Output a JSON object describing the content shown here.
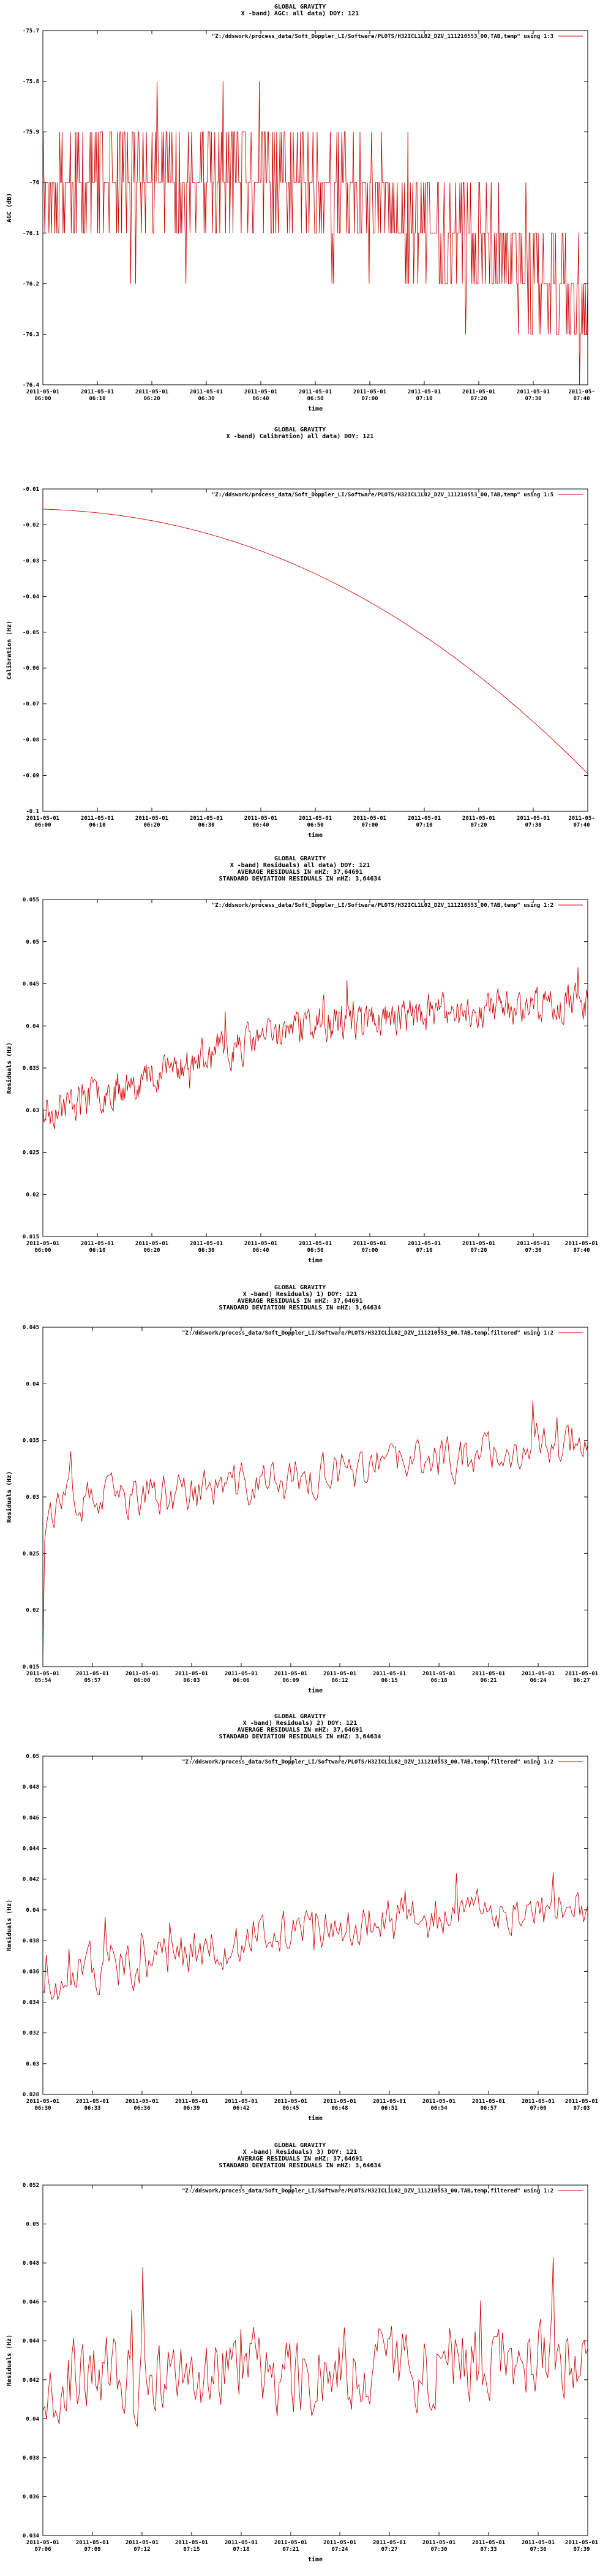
{
  "chart_data": [
    {
      "type": "line",
      "title_lines": [
        "GLOBAL GRAVITY",
        "X -band) AGC: all data) DOY: 121"
      ],
      "legend_label": "\"Z:/ddswork/process_data/Soft_Doppler_LI/Software/PLOTS/H32ICL1L02_DZV_111210553_00,TAB,temp\" using 1:3",
      "legend_position": "top-right",
      "ylabel": "AGC (dB)",
      "xlabel": "time",
      "ylim": [
        -76.4,
        -75.7
      ],
      "yticks": [
        "-75.7",
        "-75.8",
        "-75.9",
        "-76",
        "-76.1",
        "-76.2",
        "-76.3",
        "-76.4"
      ],
      "xlim": [
        0,
        100
      ],
      "xticks": [
        {
          "x": 0,
          "l1": "2011-05-01",
          "l2": "06:00"
        },
        {
          "x": 10,
          "l1": "2011-05-01",
          "l2": "06:10"
        },
        {
          "x": 20,
          "l1": "2011-05-01",
          "l2": "06:20"
        },
        {
          "x": 30,
          "l1": "2011-05-01",
          "l2": "06:30"
        },
        {
          "x": 40,
          "l1": "2011-05-01",
          "l2": "06:40"
        },
        {
          "x": 50,
          "l1": "2011-05-01",
          "l2": "06:50"
        },
        {
          "x": 60,
          "l1": "2011-05-01",
          "l2": "07:00"
        },
        {
          "x": 70,
          "l1": "2011-05-01",
          "l2": "07:10"
        },
        {
          "x": 80,
          "l1": "2011-05-01",
          "l2": "07:20"
        },
        {
          "x": 90,
          "l1": "2011-05-01",
          "l2": "07:30"
        },
        {
          "x": 100,
          "l1": "2011-05-",
          "l2": "07:40"
        }
      ],
      "series_profile": {
        "kind": "step",
        "level_start": -76.0,
        "level_end": -76.22,
        "noise": 0.1,
        "quantum": 0.1,
        "x_start": -6,
        "x_end": 100,
        "points": 700,
        "seed": 11
      },
      "color": "#cc0000"
    },
    {
      "type": "line",
      "title_lines": [
        "GLOBAL GRAVITY",
        "X -band) Calibration) all data) DOY: 121"
      ],
      "legend_label": "\"Z:/ddswork/process_data/Soft_Doppler_LI/Software/PLOTS/H32ICL1L02_DZV_111210553_00,TAB,temp\" using 1:5",
      "legend_position": "top-right",
      "ylabel": "Calibration (Hz)",
      "xlabel": "time",
      "ylim": [
        -0.1,
        -0.01
      ],
      "yticks": [
        "-0.01",
        "-0.02",
        "-0.03",
        "-0.04",
        "-0.05",
        "-0.06",
        "-0.07",
        "-0.08",
        "-0.09",
        "-0.1"
      ],
      "xlim": [
        0,
        100
      ],
      "xticks": [
        {
          "x": 0,
          "l1": "2011-05-01",
          "l2": "06:00"
        },
        {
          "x": 10,
          "l1": "2011-05-01",
          "l2": "06:10"
        },
        {
          "x": 20,
          "l1": "2011-05-01",
          "l2": "06:20"
        },
        {
          "x": 30,
          "l1": "2011-05-01",
          "l2": "06:30"
        },
        {
          "x": 40,
          "l1": "2011-05-01",
          "l2": "06:40"
        },
        {
          "x": 50,
          "l1": "2011-05-01",
          "l2": "06:50"
        },
        {
          "x": 60,
          "l1": "2011-05-01",
          "l2": "07:00"
        },
        {
          "x": 70,
          "l1": "2011-05-01",
          "l2": "07:10"
        },
        {
          "x": 80,
          "l1": "2011-05-01",
          "l2": "07:20"
        },
        {
          "x": 90,
          "l1": "2011-05-01",
          "l2": "07:30"
        },
        {
          "x": 100,
          "l1": "2011-05-",
          "l2": "07:40"
        }
      ],
      "series_profile": {
        "kind": "curve",
        "y_start": -0.0155,
        "y_end": -0.0895,
        "power": 2.2,
        "x_start": -6,
        "x_end": 100,
        "points": 200
      },
      "color": "#cc0000"
    },
    {
      "type": "line",
      "title_lines": [
        "GLOBAL GRAVITY",
        "X -band) Residuals) all data) DOY: 121",
        "AVERAGE RESIDUALS IN mHZ: 37,64691",
        "STANDARD DEVIATION RESIDUALS IN mHZ: 3,64634"
      ],
      "legend_label": "\"Z:/ddswork/process_data/Soft_Doppler_LI/Software/PLOTS/H32ICL1L02_DZV_111210553_00,TAB,temp\" using 1:2",
      "legend_position": "top-right",
      "ylabel": "Residuals (Hz)",
      "xlabel": "time",
      "ylim": [
        0.015,
        0.055
      ],
      "yticks": [
        "0.015",
        "0.02",
        "0.025",
        "0.03",
        "0.035",
        "0.04",
        "0.045",
        "0.05",
        "0.055"
      ],
      "xlim": [
        0,
        100
      ],
      "xticks": [
        {
          "x": 0,
          "l1": "2011-05-01",
          "l2": "06:00"
        },
        {
          "x": 10,
          "l1": "2011-05-01",
          "l2": "06:10"
        },
        {
          "x": 20,
          "l1": "2011-05-01",
          "l2": "06:20"
        },
        {
          "x": 30,
          "l1": "2011-05-01",
          "l2": "06:30"
        },
        {
          "x": 40,
          "l1": "2011-05-01",
          "l2": "06:40"
        },
        {
          "x": 50,
          "l1": "2011-05-01",
          "l2": "06:50"
        },
        {
          "x": 60,
          "l1": "2011-05-01",
          "l2": "07:00"
        },
        {
          "x": 70,
          "l1": "2011-05-01",
          "l2": "07:10"
        },
        {
          "x": 80,
          "l1": "2011-05-01",
          "l2": "07:20"
        },
        {
          "x": 90,
          "l1": "2011-05-01",
          "l2": "07:30"
        },
        {
          "x": 100,
          "l1": "2011-05-01",
          "l2": "07:40"
        }
      ],
      "series_profile": {
        "kind": "noisy",
        "level_start": 0.0285,
        "level_mid": 0.04,
        "level_end": 0.043,
        "noise": 0.0032,
        "x_start": -6,
        "x_end": 100,
        "points": 650,
        "seed": 23
      },
      "color": "#cc0000"
    },
    {
      "type": "line",
      "title_lines": [
        "GLOBAL GRAVITY",
        "X -band) Residuals) 1) DOY: 121",
        "AVERAGE RESIDUALS IN mHZ: 37,64691",
        "STANDARD DEVIATION RESIDUALS IN mHZ: 3,64634"
      ],
      "legend_label": "\"Z:/ddswork/process_data/Soft_Doppler_LI/Software/PLOTS/H32ICL1L02_DZV_111210553_00,TAB,temp,filtered\" using 1:2",
      "legend_position": "top-right",
      "ylabel": "Residuals (Hz)",
      "xlabel": "time",
      "ylim": [
        0.015,
        0.045
      ],
      "yticks": [
        "0.015",
        "0.02",
        "0.025",
        "0.03",
        "0.035",
        "0.04",
        "0.045"
      ],
      "xlim": [
        0,
        100
      ],
      "xticks": [
        {
          "x": 0,
          "l1": "2011-05-01",
          "l2": "05:54"
        },
        {
          "x": 9.1,
          "l1": "2011-05-01",
          "l2": "05:57"
        },
        {
          "x": 18.2,
          "l1": "2011-05-01",
          "l2": "06:00"
        },
        {
          "x": 27.3,
          "l1": "2011-05-01",
          "l2": "06:03"
        },
        {
          "x": 36.4,
          "l1": "2011-05-01",
          "l2": "06:06"
        },
        {
          "x": 45.5,
          "l1": "2011-05-01",
          "l2": "06:09"
        },
        {
          "x": 54.5,
          "l1": "2011-05-01",
          "l2": "06:12"
        },
        {
          "x": 63.6,
          "l1": "2011-05-01",
          "l2": "06:15"
        },
        {
          "x": 72.7,
          "l1": "2011-05-01",
          "l2": "06:18"
        },
        {
          "x": 81.8,
          "l1": "2011-05-01",
          "l2": "06:21"
        },
        {
          "x": 90.9,
          "l1": "2011-05-01",
          "l2": "06:24"
        },
        {
          "x": 100,
          "l1": "2011-05-01",
          "l2": "06:27"
        }
      ],
      "series_profile": {
        "kind": "noisy",
        "level_start": 0.029,
        "level_mid": 0.032,
        "level_end": 0.036,
        "noise": 0.003,
        "x_start": 0,
        "x_end": 109,
        "points": 320,
        "seed": 37,
        "start_dip": 0.0155
      },
      "color": "#cc0000"
    },
    {
      "type": "line",
      "title_lines": [
        "GLOBAL GRAVITY",
        "X -band) Residuals) 2) DOY: 121",
        "AVERAGE RESIDUALS IN mHZ: 37,64691",
        "STANDARD DEVIATION RESIDUALS IN mHZ: 3,64634"
      ],
      "legend_label": "\"Z:/ddswork/process_data/Soft_Doppler_LI/Software/PLOTS/H32ICL1L02_DZV_111210553_00,TAB,temp,filtered\" using 1:2",
      "legend_position": "top-right",
      "ylabel": "Residuals (Hz)",
      "xlabel": "time",
      "ylim": [
        0.028,
        0.05
      ],
      "yticks": [
        "0.028",
        "0.03",
        "0.032",
        "0.034",
        "0.036",
        "0.038",
        "0.04",
        "0.042",
        "0.044",
        "0.046",
        "0.048",
        "0.05"
      ],
      "xlim": [
        0,
        100
      ],
      "xticks": [
        {
          "x": 0,
          "l1": "2011-05-01",
          "l2": "06:30"
        },
        {
          "x": 9.1,
          "l1": "2011-05-01",
          "l2": "06:33"
        },
        {
          "x": 18.2,
          "l1": "2011-05-01",
          "l2": "06:36"
        },
        {
          "x": 27.3,
          "l1": "2011-05-01",
          "l2": "06:39"
        },
        {
          "x": 36.4,
          "l1": "2011-05-01",
          "l2": "06:42"
        },
        {
          "x": 45.5,
          "l1": "2011-05-01",
          "l2": "06:45"
        },
        {
          "x": 54.5,
          "l1": "2011-05-01",
          "l2": "06:48"
        },
        {
          "x": 63.6,
          "l1": "2011-05-01",
          "l2": "06:51"
        },
        {
          "x": 72.7,
          "l1": "2011-05-01",
          "l2": "06:54"
        },
        {
          "x": 81.8,
          "l1": "2011-05-01",
          "l2": "06:57"
        },
        {
          "x": 90.9,
          "l1": "2011-05-01",
          "l2": "07:00"
        },
        {
          "x": 100,
          "l1": "2011-05-01",
          "l2": "07:03"
        }
      ],
      "series_profile": {
        "kind": "noisy",
        "level_start": 0.035,
        "level_mid": 0.039,
        "level_end": 0.0405,
        "noise": 0.0024,
        "x_start": -6,
        "x_end": 109,
        "points": 330,
        "seed": 51
      },
      "color": "#cc0000"
    },
    {
      "type": "line",
      "title_lines": [
        "GLOBAL GRAVITY",
        "X -band) Residuals) 3) DOY: 121",
        "AVERAGE RESIDUALS IN mHZ: 37,64691",
        "STANDARD DEVIATION RESIDUALS IN mHZ: 3,64634"
      ],
      "legend_label": "\"Z:/ddswork/process_data/Soft_Doppler_LI/Software/PLOTS/H32ICL1L02_DZV_111210553_00,TAB,temp,filtered\" using 1:2",
      "legend_position": "top-right",
      "ylabel": "Residuals (Hz)",
      "xlabel": "time",
      "ylim": [
        0.034,
        0.052
      ],
      "yticks": [
        "0.034",
        "0.036",
        "0.038",
        "0.04",
        "0.042",
        "0.044",
        "0.046",
        "0.048",
        "0.05",
        "0.052"
      ],
      "xlim": [
        0,
        100
      ],
      "xticks": [
        {
          "x": 0,
          "l1": "2011-05-01",
          "l2": "07:06"
        },
        {
          "x": 9.1,
          "l1": "2011-05-01",
          "l2": "07:09"
        },
        {
          "x": 18.2,
          "l1": "2011-05-01",
          "l2": "07:12"
        },
        {
          "x": 27.3,
          "l1": "2011-05-01",
          "l2": "07:15"
        },
        {
          "x": 36.4,
          "l1": "2011-05-01",
          "l2": "07:18"
        },
        {
          "x": 45.5,
          "l1": "2011-05-01",
          "l2": "07:21"
        },
        {
          "x": 54.5,
          "l1": "2011-05-01",
          "l2": "07:24"
        },
        {
          "x": 63.6,
          "l1": "2011-05-01",
          "l2": "07:27"
        },
        {
          "x": 72.7,
          "l1": "2011-05-01",
          "l2": "07:30"
        },
        {
          "x": 81.8,
          "l1": "2011-05-01",
          "l2": "07:33"
        },
        {
          "x": 90.9,
          "l1": "2011-05-01",
          "l2": "07:36"
        },
        {
          "x": 100,
          "l1": "2011-05-01",
          "l2": "07:39"
        }
      ],
      "series_profile": {
        "kind": "noisy",
        "level_start": 0.042,
        "level_mid": 0.0425,
        "level_end": 0.0435,
        "noise": 0.0032,
        "x_start": -6,
        "x_end": 104,
        "points": 330,
        "seed": 67
      },
      "color": "#cc0000"
    }
  ]
}
